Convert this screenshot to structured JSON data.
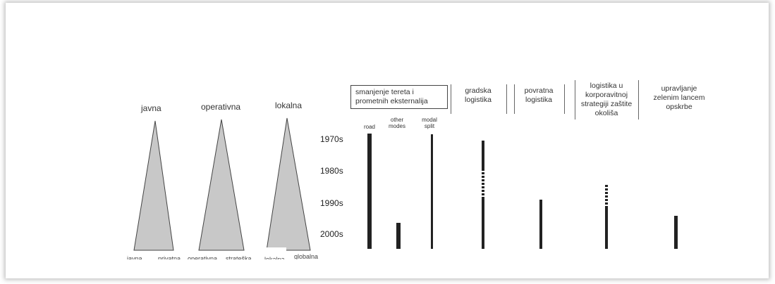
{
  "triangles": [
    {
      "label": "javna",
      "bottom_left": "javna",
      "bottom_right": "privatna"
    },
    {
      "label": "operativna",
      "bottom_left": "operativna",
      "bottom_right": "strateška"
    },
    {
      "label": "lokalna",
      "bottom_left": "lokalna",
      "bottom_right": "globalna"
    }
  ],
  "decades": [
    "1970s",
    "1980s",
    "1990s",
    "2000s"
  ],
  "headings": {
    "h1": "smanjenje tereta i prometnih eksternalija",
    "h2": "gradska logistika",
    "h3": "povratna logistika",
    "h4": "logistika u korporavitnoj strategiji zaštite okoliša",
    "h5": "upravljanje zelenim lancem opskrbe"
  },
  "sublabels": {
    "road": "road",
    "other_modes": "other modes",
    "modal_split": "modal split"
  },
  "timelines": [
    {
      "id": "road",
      "start": "1970s",
      "end": "2000s"
    },
    {
      "id": "other_modes",
      "start": "2000s",
      "end": "2000s"
    },
    {
      "id": "modal_split",
      "start": "1970s",
      "end": "2000s"
    },
    {
      "id": "gradska_logistika",
      "start": "1970s",
      "end": "2000s",
      "dashed_segment": "1980s"
    },
    {
      "id": "povratna_logistika",
      "start": "1990s",
      "end": "2000s"
    },
    {
      "id": "logistika_u_strategiji",
      "start": "1990s",
      "end": "2000s",
      "dashed_segment": "1990s"
    },
    {
      "id": "zeleni_lanac",
      "start": "2000s",
      "end": "2000s"
    }
  ],
  "colors": {
    "triangle_fill": "#c8c8c8",
    "bar": "#222222",
    "frame_shadow": "#999999"
  }
}
